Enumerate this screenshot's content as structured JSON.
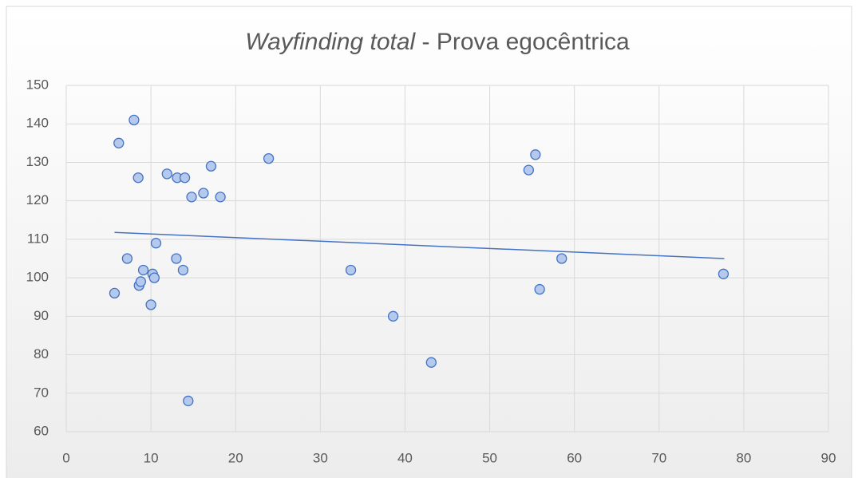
{
  "chart_data": {
    "type": "scatter",
    "title": {
      "italic": "Wayfinding total",
      "rest": "- Prova egocêntrica"
    },
    "x": [
      5.7,
      6.2,
      7.2,
      8.0,
      8.5,
      8.6,
      8.8,
      9.1,
      10.0,
      10.2,
      10.4,
      10.6,
      11.9,
      13.0,
      13.1,
      13.8,
      14.0,
      14.4,
      14.8,
      16.2,
      17.1,
      18.2,
      23.9,
      33.6,
      38.6,
      43.1,
      54.6,
      55.4,
      55.9,
      58.5,
      77.6
    ],
    "values": [
      96,
      135,
      105,
      141,
      126,
      98,
      99,
      102,
      93,
      101,
      100,
      109,
      127,
      105,
      126,
      102,
      126,
      68,
      121,
      122,
      129,
      121,
      131,
      102,
      90,
      78,
      128,
      132,
      97,
      105,
      101
    ],
    "color": "#4472c4",
    "trendline": {
      "x": [
        5.7,
        77.7
      ],
      "y": [
        111.8,
        105
      ],
      "color": "#4472c4"
    },
    "xlim": [
      0,
      90
    ],
    "xticks": [
      0,
      10,
      20,
      30,
      40,
      50,
      60,
      70,
      80,
      90
    ],
    "ylim": [
      60,
      150
    ],
    "yticks": [
      60,
      70,
      80,
      90,
      100,
      110,
      120,
      130,
      140,
      150
    ],
    "grid": true
  }
}
